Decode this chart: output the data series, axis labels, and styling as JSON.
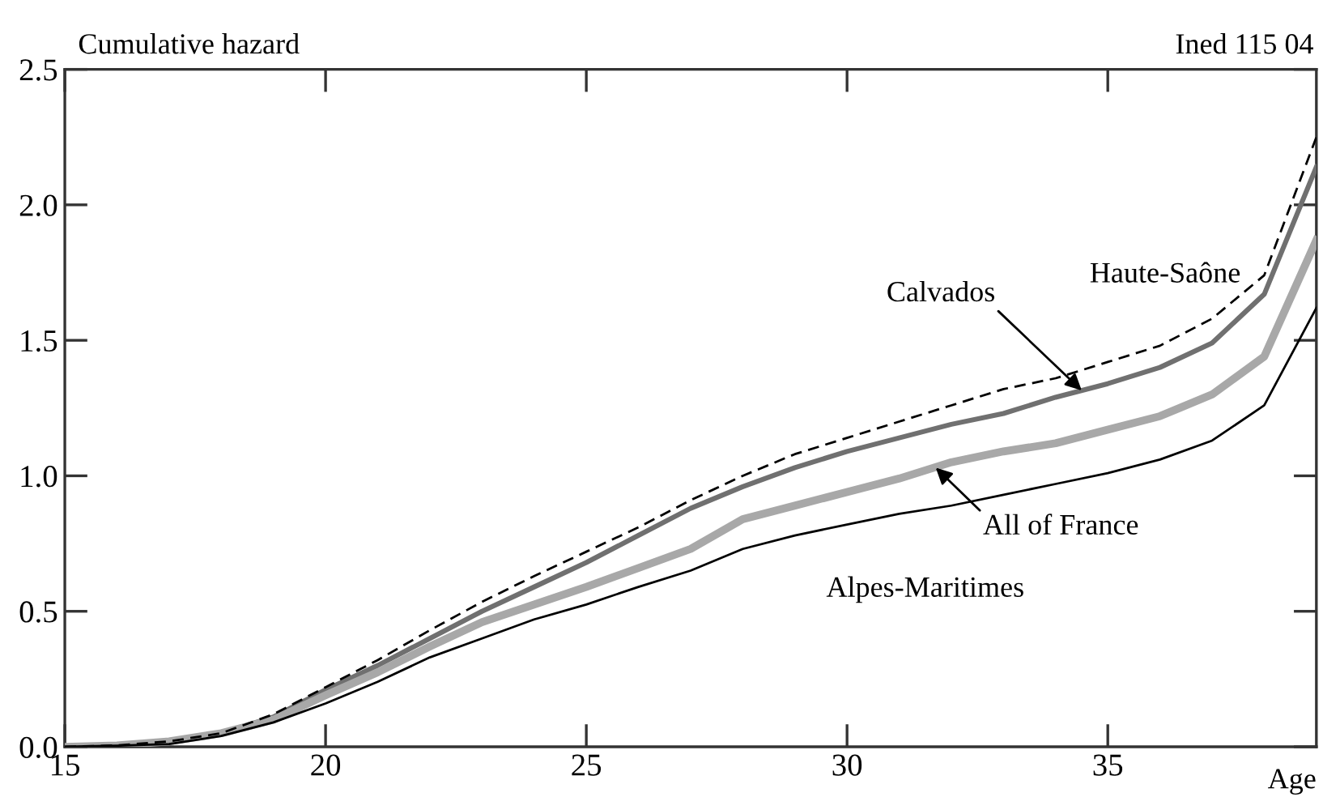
{
  "chart_data": {
    "type": "line",
    "ylabel": "Cumulative hazard",
    "xlabel": "Age",
    "annotations": [
      "Ined 115 04",
      {
        "text": "Calvados",
        "x": 34.5,
        "y": 1.315
      },
      {
        "text": "All of France",
        "x": 31.7,
        "y": 1.03
      }
    ],
    "x": [
      15,
      16,
      17,
      18,
      19,
      20,
      21,
      22,
      23,
      24,
      25,
      26,
      27,
      28,
      29,
      30,
      31,
      32,
      33,
      34,
      35,
      36,
      37,
      38,
      39
    ],
    "series": [
      {
        "name": "Haute-Saône",
        "color": "#000000",
        "line_style": "dashed",
        "values": [
          0,
          0.005,
          0.02,
          0.05,
          0.12,
          0.22,
          0.32,
          0.43,
          0.535,
          0.63,
          0.72,
          0.81,
          0.91,
          1.0,
          1.08,
          1.14,
          1.2,
          1.26,
          1.32,
          1.36,
          1.42,
          1.48,
          1.58,
          1.74,
          2.25
        ]
      },
      {
        "color": "#707070",
        "line_style": "solid",
        "values": [
          0,
          0.005,
          0.02,
          0.05,
          0.11,
          0.21,
          0.3,
          0.4,
          0.5,
          0.59,
          0.68,
          0.78,
          0.88,
          0.96,
          1.03,
          1.09,
          1.14,
          1.19,
          1.23,
          1.29,
          1.34,
          1.4,
          1.49,
          1.67,
          2.14
        ]
      },
      {
        "color": "#a8a8a8",
        "line_style": "solid",
        "values": [
          0,
          0.005,
          0.02,
          0.05,
          0.1,
          0.19,
          0.275,
          0.37,
          0.46,
          0.525,
          0.59,
          0.66,
          0.73,
          0.84,
          0.89,
          0.94,
          0.99,
          1.05,
          1.09,
          1.12,
          1.17,
          1.22,
          1.3,
          1.44,
          1.87
        ]
      },
      {
        "name": "Alpes-Maritimes",
        "color": "#000000",
        "line_style": "solid",
        "values": [
          0,
          0.004,
          0.01,
          0.04,
          0.09,
          0.16,
          0.24,
          0.33,
          0.4,
          0.47,
          0.525,
          0.59,
          0.65,
          0.73,
          0.78,
          0.82,
          0.86,
          0.89,
          0.93,
          0.97,
          1.01,
          1.06,
          1.13,
          1.26,
          1.62
        ]
      }
    ],
    "xlim": [
      15,
      39
    ],
    "xticks": [
      15,
      20,
      25,
      30,
      35
    ],
    "ylim": [
      0,
      2.5
    ],
    "yticks": [
      {
        "value": 0,
        "label": "0.0"
      },
      {
        "value": 0.5,
        "label": "0.5"
      },
      {
        "value": 1,
        "label": "1.0"
      },
      {
        "value": 1.5,
        "label": "1.5"
      },
      {
        "value": 2,
        "label": "2.0"
      },
      {
        "value": 2.5,
        "label": "2.5"
      }
    ],
    "grid": false,
    "legend": false,
    "marker": "none"
  }
}
